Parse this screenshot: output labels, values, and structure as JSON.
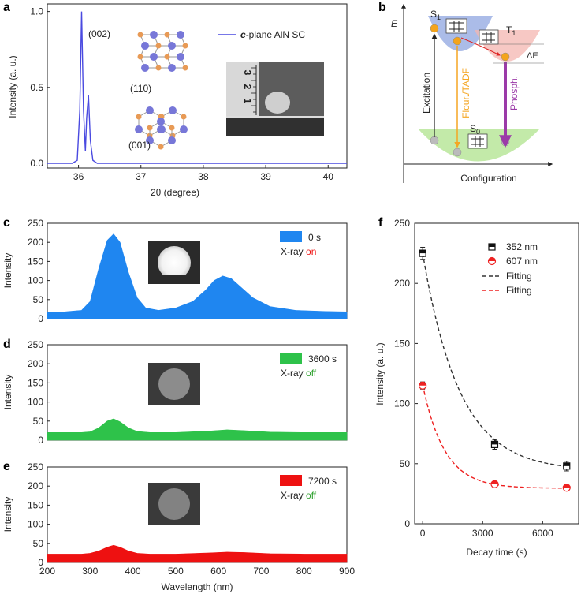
{
  "colors": {
    "xrd": "#4a4ae0",
    "spec0": "#1f86f0",
    "spec3600": "#2ec24a",
    "spec7200": "#ee1111",
    "fit352": "#333333",
    "fit607": "#ee2020",
    "on": "#ee1111",
    "off": "#2ea02e",
    "flour": "#f5a623",
    "phosph": "#9b3aa8",
    "s1": "#8fa5e0",
    "t1": "#f4b6b0",
    "s0": "#b9e69a",
    "electron": "#f4a41c",
    "atomN": "#7777d8",
    "atomAl": "#e89a55"
  },
  "icons": [
    "ruler-photo-icon",
    "crystal-structure-icon",
    "luminescence-photo-icon"
  ],
  "panel_a": {
    "letter": "a",
    "xlabel": "2θ (degree)",
    "ylabel": "Intensity (a. u.)",
    "legend": "c-plane AlN SC",
    "legend_prefix": "c",
    "legend_suffix": "-plane AlN SC",
    "peak_label": "(002)",
    "struct_110": "(110)",
    "struct_001": "(001)",
    "ruler_numbers": [
      "3",
      "2",
      "1"
    ]
  },
  "panel_b": {
    "letter": "b",
    "y_axis": "E",
    "x_axis": "Configuration",
    "s1": "S",
    "s1_sub": "1",
    "t1": "T",
    "t1_sub": "1",
    "s0": "S",
    "s0_sub": "0",
    "excitation": "Excitation",
    "flour": "Flour./TADF",
    "phosph": "Phosph.",
    "delta_e": "ΔE"
  },
  "panel_c": {
    "letter": "c",
    "legend_time": "0 s",
    "xray_prefix": "X-ray ",
    "xray_state": "on",
    "ylabel": "Intensity"
  },
  "panel_d": {
    "letter": "d",
    "legend_time": "3600 s",
    "xray_prefix": "X-ray ",
    "xray_state": "off",
    "ylabel": "Intensity"
  },
  "panel_e": {
    "letter": "e",
    "legend_time": "7200 s",
    "xray_prefix": "X-ray ",
    "xray_state": "off",
    "ylabel": "Intensity",
    "xlabel": "Wavelength (nm)"
  },
  "panel_f": {
    "letter": "f",
    "xlabel": "Decay time (s)",
    "ylabel": "Intensity (a. u.)"
  },
  "chart_data": [
    {
      "panel": "a",
      "type": "line",
      "x": [
        35.5,
        35.9,
        35.98,
        36.02,
        36.05,
        36.08,
        36.11,
        36.13,
        36.16,
        36.19,
        36.23,
        36.3,
        37,
        38,
        39,
        40.3
      ],
      "y": [
        0.0,
        0.0,
        0.02,
        0.35,
        1.0,
        0.35,
        0.08,
        0.3,
        0.45,
        0.15,
        0.02,
        0.0,
        0.0,
        0.0,
        0.0,
        0.0
      ],
      "series_name": "c-plane AlN SC",
      "xlim": [
        35.5,
        40.3
      ],
      "ylim": [
        0,
        1.05
      ],
      "xticks": [
        36,
        37,
        38,
        39,
        40
      ],
      "yticks": [
        0.0,
        0.5,
        1.0
      ],
      "ytick_labels": [
        "0.0",
        "0.5",
        "1.0"
      ],
      "xlabel": "2θ (degree)",
      "ylabel": "Intensity (a. u.)",
      "annotations": [
        "(002)",
        "(110)",
        "(001)"
      ]
    },
    {
      "panel": "c",
      "type": "area",
      "x": [
        200,
        240,
        280,
        300,
        320,
        340,
        355,
        370,
        390,
        410,
        430,
        460,
        500,
        540,
        570,
        590,
        610,
        630,
        650,
        680,
        720,
        780,
        850,
        900
      ],
      "y": [
        18,
        18,
        22,
        45,
        130,
        205,
        222,
        200,
        120,
        55,
        28,
        22,
        28,
        45,
        75,
        100,
        112,
        105,
        85,
        55,
        32,
        22,
        19,
        18
      ],
      "series_name": "0 s",
      "xlim": [
        200,
        900
      ],
      "ylim": [
        0,
        250
      ],
      "yticks": [
        0,
        50,
        100,
        150,
        200,
        250
      ],
      "legend": "0 s",
      "annotation": "X-ray on"
    },
    {
      "panel": "d",
      "type": "area",
      "x": [
        200,
        280,
        300,
        320,
        340,
        355,
        370,
        390,
        410,
        440,
        500,
        580,
        620,
        660,
        720,
        800,
        900
      ],
      "y": [
        20,
        20,
        22,
        32,
        50,
        56,
        48,
        32,
        23,
        20,
        20,
        24,
        27,
        25,
        21,
        20,
        20
      ],
      "series_name": "3600 s",
      "xlim": [
        200,
        900
      ],
      "ylim": [
        0,
        250
      ],
      "yticks": [
        0,
        50,
        100,
        150,
        200,
        250
      ],
      "legend": "3600 s",
      "annotation": "X-ray off"
    },
    {
      "panel": "e",
      "type": "area",
      "x": [
        200,
        280,
        300,
        320,
        340,
        355,
        370,
        390,
        410,
        440,
        500,
        580,
        620,
        660,
        720,
        800,
        900
      ],
      "y": [
        22,
        22,
        24,
        30,
        40,
        45,
        40,
        30,
        24,
        22,
        22,
        25,
        27,
        26,
        23,
        22,
        22
      ],
      "series_name": "7200 s",
      "xlim": [
        200,
        900
      ],
      "ylim": [
        0,
        250
      ],
      "xticks": [
        200,
        300,
        400,
        500,
        600,
        700,
        800,
        900
      ],
      "yticks": [
        0,
        50,
        100,
        150,
        200,
        250
      ],
      "legend": "7200 s",
      "annotation": "X-ray off",
      "xlabel": "Wavelength (nm)"
    },
    {
      "panel": "f",
      "type": "scatter",
      "xlim": [
        -400,
        7800
      ],
      "ylim": [
        0,
        250
      ],
      "xticks": [
        0,
        3000,
        6000
      ],
      "yticks": [
        0,
        50,
        100,
        150,
        200,
        250
      ],
      "xlabel": "Decay time (s)",
      "ylabel": "Intensity (a. u.)",
      "series": [
        {
          "name": "352 nm",
          "x": [
            0,
            3600,
            7200
          ],
          "y": [
            225,
            66,
            48
          ],
          "err": [
            5,
            4,
            4
          ]
        },
        {
          "name": "607 nm",
          "x": [
            0,
            3600,
            7200
          ],
          "y": [
            115,
            33,
            30
          ],
          "err": [
            3,
            2,
            2
          ]
        }
      ],
      "fits": [
        {
          "name": "Fitting",
          "for": "352 nm",
          "model": "exp",
          "A": 181,
          "tau": 1850,
          "C": 44
        },
        {
          "name": "Fitting",
          "for": "607 nm",
          "model": "exp",
          "A": 86,
          "tau": 1100,
          "C": 29.5
        }
      ]
    }
  ]
}
